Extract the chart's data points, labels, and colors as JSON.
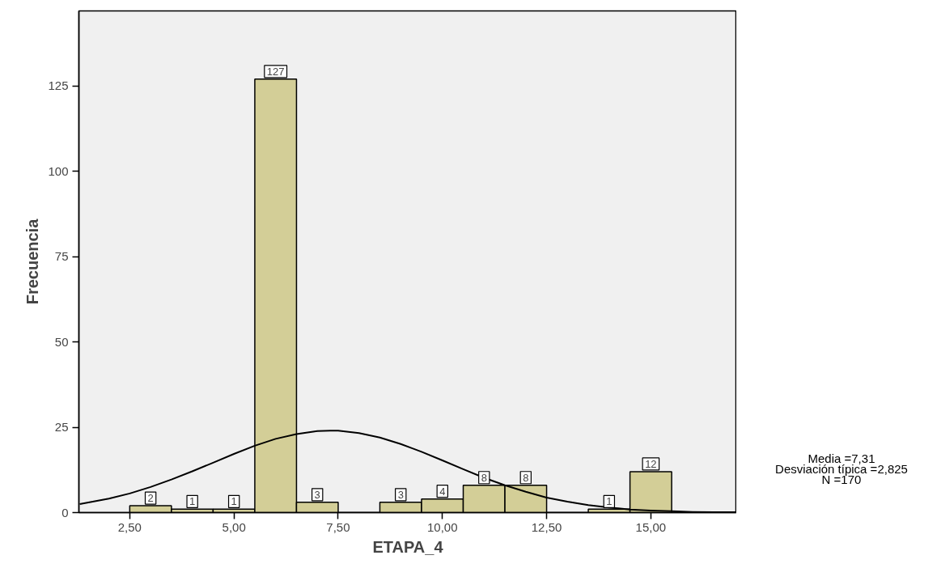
{
  "chart_data": {
    "type": "histogram",
    "xlabel": "ETAPA_4",
    "ylabel": "Frecuencia",
    "bins": [
      2.5,
      3.5,
      4.5,
      5.5,
      6.5,
      7.5,
      8.5,
      9.5,
      10.5,
      11.5,
      12.5,
      13.5,
      14.5,
      15.5
    ],
    "series": [
      {
        "color": "#d3ce97",
        "values": [
          2,
          1,
          1,
          127,
          3,
          0,
          3,
          4,
          8,
          8,
          0,
          1,
          12
        ],
        "value_labels": [
          "2",
          "1",
          "1",
          "127",
          "3",
          null,
          "3",
          "4",
          "8",
          "8",
          null,
          "1",
          "12"
        ]
      },
      {
        "type": "line",
        "color": "#000000",
        "x": [
          1.3,
          2,
          2.5,
          3,
          3.5,
          4,
          4.5,
          5,
          5.5,
          6,
          6.5,
          7,
          7.31,
          7.5,
          8,
          8.5,
          9,
          9.5,
          10,
          10.5,
          11,
          11.5,
          12,
          12.5,
          13,
          13.5,
          14,
          14.5,
          15,
          15.5,
          16,
          16.5,
          17.06
        ],
        "values": [
          2.5,
          4.1,
          5.6,
          7.5,
          9.7,
          12.1,
          14.6,
          17.2,
          19.6,
          21.6,
          23.0,
          23.9,
          24.0,
          24.0,
          23.3,
          22.0,
          20.1,
          17.8,
          15.3,
          12.7,
          10.2,
          8.0,
          6.1,
          4.4,
          3.2,
          2.2,
          1.5,
          0.9,
          0.6,
          0.4,
          0.2,
          0.1,
          0.1
        ]
      }
    ],
    "xlim": [
      1.28,
      17.06
    ],
    "ylim": [
      0,
      147
    ],
    "xticks": [
      {
        "value": 2.5,
        "label": "2,50"
      },
      {
        "value": 5,
        "label": "5,00"
      },
      {
        "value": 7.5,
        "label": "7,50"
      },
      {
        "value": 10,
        "label": "10,00"
      },
      {
        "value": 12.5,
        "label": "12,50"
      },
      {
        "value": 15,
        "label": "15,00"
      }
    ],
    "yticks": [
      0,
      25,
      50,
      75,
      100,
      125
    ],
    "grid": false,
    "annotations": [
      "Media =7,31",
      "Desviación típica =2,825",
      "N =170"
    ]
  }
}
